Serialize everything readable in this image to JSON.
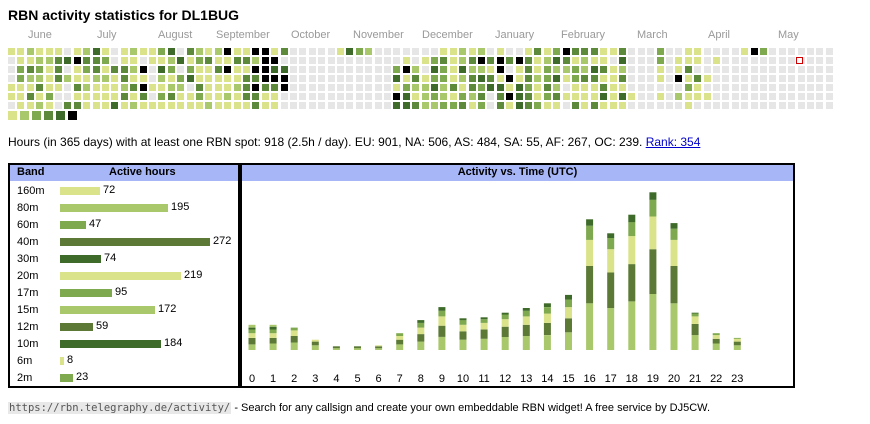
{
  "page": {
    "title": "RBN activity statistics for DL1BUG",
    "summary_text": "Hours (in 365 days) with at least one RBN spot: 918 (2.5h / day). EU: 901, NA: 506, AS: 484, SA: 55, AF: 267, OC: 239.",
    "rank_link": "Rank: 354",
    "footer_url": "https://rbn.telegraphy.de/activity/",
    "footer_text": " - Search for any callsign and create your own embeddable RBN widget! A free service by DJ5CW."
  },
  "months": [
    "June",
    "July",
    "August",
    "September",
    "October",
    "November",
    "December",
    "January",
    "February",
    "March",
    "April",
    "May"
  ],
  "colors": {
    "empty": "#e6e6e6",
    "legend": [
      "#dbe38a",
      "#a9c86c",
      "#7ea94e",
      "#5c8a3a",
      "#3e6b29",
      "#000000"
    ],
    "today_outline": "#d10000",
    "header_bg": "#a7b6f7"
  },
  "heatmap_columns": [
    "0---00-",
    "0022000",
    "1031030",
    "0121301",
    "0100020",
    "03330--",
    "-4-1--3",
    "0500303",
    "1320100",
    "4331000",
    "0201000",
    "--30004",
    "0033130",
    "1010301",
    "0-50530",
    "00--0-0",
    "2041020",
    "4120130",
    "-4-2100",
    "3024-00",
    "1200320",
    "0300001",
    "1030000",
    "5050010",
    "0300100",
    "0303330",
    "5153533",
    "5555300",
    "0545300",
    "3-455--",
    "-------",
    "-------",
    "-------",
    "-------",
    "-------",
    "0------",
    "4------",
    "2------",
    "1------",
    "-------",
    "-------",
    "--24054",
    "-050244",
    "--13103",
    "-0-0111",
    "-242421",
    "0322112",
    "0000302",
    "1141023",
    "0313310",
    "1514232",
    "-3034--",
    "0550433",
    "-3-5050",
    "-500444",
    "0333233",
    "3001002",
    "0122320",
    "2414130",
    "5310-0-",
    "3022003",
    "3113000",
    "3043003",
    "0030340",
    "0-00000",
    "3413040",
    "-----0-",
    "-------",
    "-------",
    "2200-0-",
    "-------",
    "-005-1-",
    "0030200",
    "00-300-",
    "---0-0-",
    "-0-----",
    "-------",
    "-------",
    "0------",
    "5------",
    "2------",
    "-------",
    "-------",
    "-------",
    "-------",
    "-------",
    "-------",
    "-------"
  ],
  "bands": [
    {
      "name": "160m",
      "hours": 72,
      "color": "#dbe38a"
    },
    {
      "name": "80m",
      "hours": 195,
      "color": "#a9c86c"
    },
    {
      "name": "60m",
      "hours": 47,
      "color": "#7ea94e"
    },
    {
      "name": "40m",
      "hours": 272,
      "color": "#5c7a36"
    },
    {
      "name": "30m",
      "hours": 74,
      "color": "#3e6b29"
    },
    {
      "name": "20m",
      "hours": 219,
      "color": "#dbe38a"
    },
    {
      "name": "17m",
      "hours": 95,
      "color": "#7ea94e"
    },
    {
      "name": "15m",
      "hours": 172,
      "color": "#a9c86c"
    },
    {
      "name": "12m",
      "hours": 59,
      "color": "#5c7a36"
    },
    {
      "name": "10m",
      "hours": 184,
      "color": "#3e6b29"
    },
    {
      "name": "6m",
      "hours": 8,
      "color": "#dbe38a"
    },
    {
      "name": "2m",
      "hours": 23,
      "color": "#7ea94e"
    }
  ],
  "band_table": {
    "col_band": "Band",
    "col_hours": "Active hours"
  },
  "chart_data": {
    "type": "bar",
    "title": "Activity vs. Time (UTC)",
    "categories": [
      "0",
      "1",
      "2",
      "3",
      "4",
      "5",
      "6",
      "7",
      "8",
      "9",
      "10",
      "11",
      "12",
      "13",
      "14",
      "15",
      "16",
      "17",
      "18",
      "19",
      "20",
      "21",
      "22",
      "23"
    ],
    "stack_colors": [
      "#a9c86c",
      "#5c7a36",
      "#dbe38a",
      "#7ea94e",
      "#3e6b29",
      "#a9c86c"
    ],
    "stacks": [
      [
        6,
        7,
        5,
        4,
        2,
        3
      ],
      [
        7,
        6,
        5,
        4,
        3,
        2
      ],
      [
        8,
        7,
        6,
        3
      ],
      [
        5,
        4,
        2
      ],
      [
        2,
        2
      ],
      [
        2,
        2
      ],
      [
        2,
        2,
        1
      ],
      [
        6,
        5,
        4,
        3
      ],
      [
        9,
        8,
        7,
        5,
        3
      ],
      [
        14,
        12,
        10,
        6,
        4
      ],
      [
        11,
        9,
        7,
        5,
        2
      ],
      [
        12,
        10,
        7,
        4,
        2
      ],
      [
        14,
        11,
        8,
        5,
        2
      ],
      [
        15,
        12,
        9,
        6,
        3
      ],
      [
        16,
        13,
        10,
        7,
        4
      ],
      [
        19,
        15,
        12,
        8,
        5
      ],
      [
        50,
        40,
        28,
        15,
        7
      ],
      [
        45,
        38,
        25,
        12,
        5
      ],
      [
        52,
        40,
        30,
        15,
        8
      ],
      [
        60,
        48,
        35,
        18,
        8
      ],
      [
        50,
        40,
        28,
        12,
        6
      ],
      [
        16,
        12,
        8,
        3,
        1
      ],
      [
        7,
        5,
        4,
        2
      ],
      [
        5,
        4,
        3,
        1
      ]
    ],
    "ylim": [
      0,
      180
    ]
  }
}
